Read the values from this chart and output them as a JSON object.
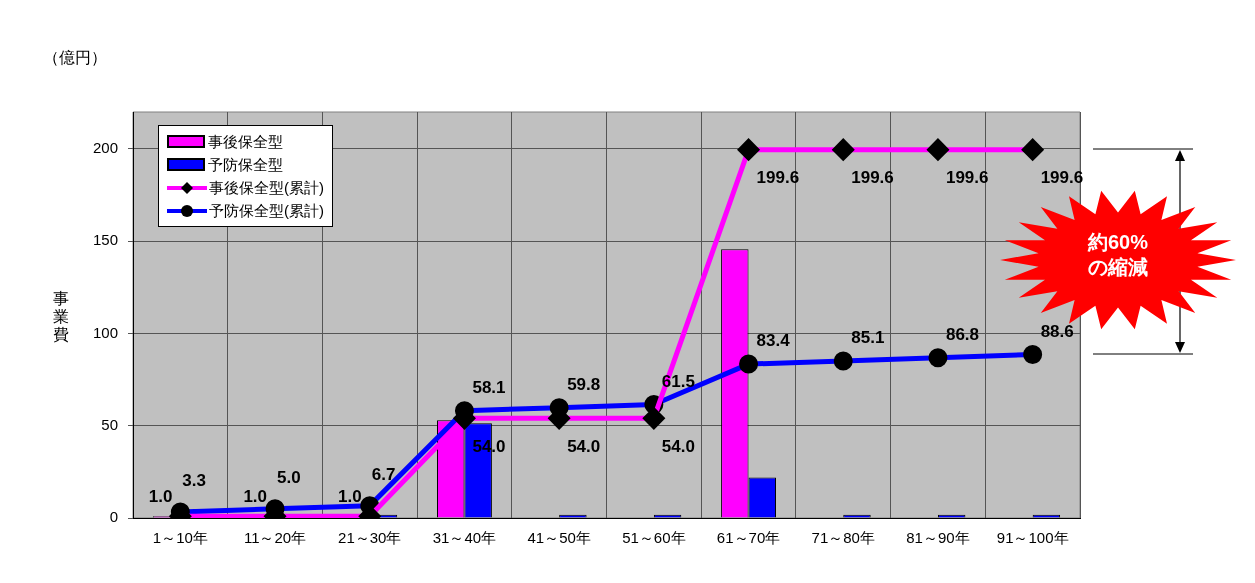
{
  "chart_data": {
    "type": "bar",
    "ylabel": "事業費",
    "annotations": [
      "（億円）",
      "約60%\nの縮減"
    ],
    "categories": [
      "1～10年",
      "11～20年",
      "21～30年",
      "31～40年",
      "41～50年",
      "51～60年",
      "61～70年",
      "71～80年",
      "81～90年",
      "91～100年"
    ],
    "series": [
      {
        "name": "事後保全型",
        "color": "#ff00ff",
        "values": [
          1.0,
          0,
          0,
          53.0,
          0,
          0,
          145.6,
          0,
          0,
          0
        ]
      },
      {
        "name": "予防保全型",
        "color": "#0000ff",
        "values": [
          null,
          null,
          1.7,
          51.4,
          1.7,
          1.7,
          21.9,
          1.7,
          1.7,
          1.8
        ]
      },
      {
        "name": "事後保全型(累計)",
        "type": "line",
        "color": "#ff00ff",
        "marker": "diamond",
        "values": [
          1.0,
          1.0,
          1.0,
          54.0,
          54.0,
          54.0,
          199.6,
          199.6,
          199.6,
          199.6
        ],
        "value_labels": [
          "1.0",
          "1.0",
          "1.0",
          "54.0",
          "54.0",
          "54.0",
          "199.6",
          "199.6",
          "199.6",
          "199.6"
        ]
      },
      {
        "name": "予防保全型(累計)",
        "type": "line",
        "color": "#0000ff",
        "marker": "circle",
        "values": [
          3.3,
          5.0,
          6.7,
          58.1,
          59.8,
          61.5,
          83.4,
          85.1,
          86.8,
          88.6
        ],
        "value_labels": [
          "3.3",
          "5.0",
          "6.7",
          "58.1",
          "59.8",
          "61.5",
          "83.4",
          "85.1",
          "86.8",
          "88.6"
        ]
      }
    ],
    "ylim": [
      0,
      220
    ],
    "yticks": [
      0,
      50,
      100,
      150,
      200
    ],
    "grid": true,
    "legend": "top left"
  }
}
